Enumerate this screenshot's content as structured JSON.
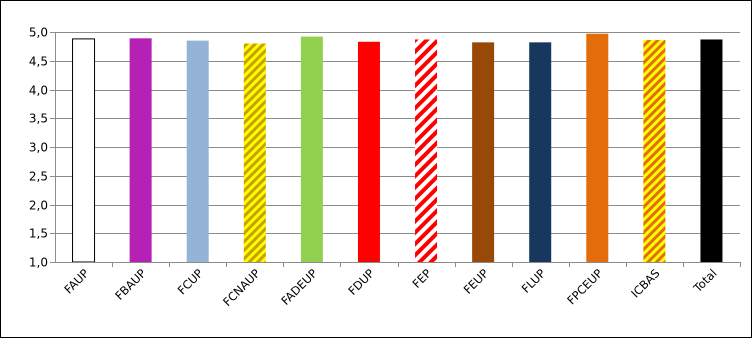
{
  "chart_data": {
    "type": "bar",
    "title": "",
    "xlabel": "",
    "ylabel": "",
    "ylim": [
      1.0,
      5.0
    ],
    "yticks": [
      "1,0",
      "1,5",
      "2,0",
      "2,5",
      "3,0",
      "3,5",
      "4,0",
      "4,5",
      "5,0"
    ],
    "grid": true,
    "legend": "none",
    "categories": [
      "FAUP",
      "FBAUP",
      "FCUP",
      "FCNAUP",
      "FADEUP",
      "FDUP",
      "FEP",
      "FEUP",
      "FLUP",
      "FPCEUP",
      "ICBAS",
      "Total"
    ],
    "values": [
      4.88,
      4.89,
      4.85,
      4.8,
      4.92,
      4.83,
      4.87,
      4.82,
      4.82,
      4.97,
      4.86,
      4.87
    ],
    "bar_styles": [
      {
        "fill": "#ffffff",
        "stroke": "#000000",
        "pattern": "none"
      },
      {
        "fill": "#b520b5",
        "pattern": "none"
      },
      {
        "fill": "#95b3d7",
        "pattern": "none"
      },
      {
        "fill": "#ffff00",
        "fill2": "#c8a000",
        "pattern": "diagonal"
      },
      {
        "fill": "#92d050",
        "pattern": "none"
      },
      {
        "fill": "#ff0000",
        "pattern": "none"
      },
      {
        "fill": "#ffffff",
        "fill2": "#ff0000",
        "pattern": "diagonal"
      },
      {
        "fill": "#984807",
        "pattern": "none"
      },
      {
        "fill": "#17375e",
        "pattern": "none"
      },
      {
        "fill": "#e46c0a",
        "pattern": "none"
      },
      {
        "fill": "#ffff00",
        "fill2": "#e46c0a",
        "pattern": "diagonal"
      },
      {
        "fill": "#000000",
        "pattern": "none"
      }
    ]
  }
}
